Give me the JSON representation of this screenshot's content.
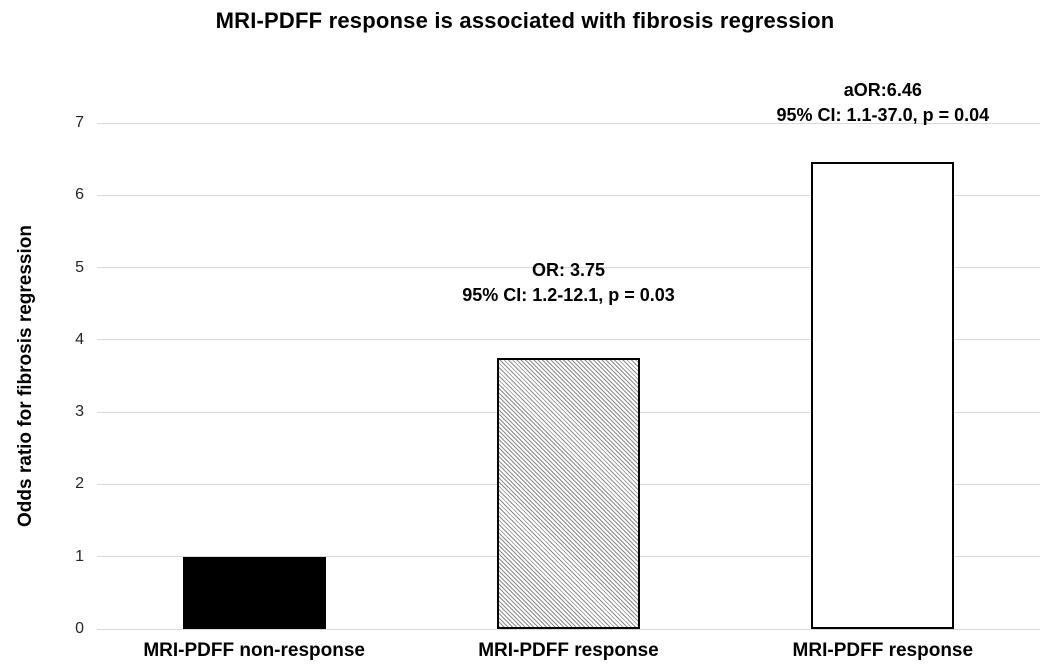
{
  "chart_data": {
    "type": "bar",
    "title": "MRI-PDFF response is associated with fibrosis regression",
    "xlabel": "",
    "ylabel": "Odds ratio for fibrosis regression",
    "ylim": [
      0,
      7
    ],
    "yticks": [
      0,
      1,
      2,
      3,
      4,
      5,
      6,
      7
    ],
    "grid": true,
    "legend_position": "none",
    "categories": [
      "MRI-PDFF non-response",
      "MRI-PDFF response",
      "MRI-PDFF response"
    ],
    "values": [
      1,
      3.75,
      6.46
    ],
    "bar_styles": [
      "solid-black",
      "diagonal-hatch",
      "white-outline"
    ],
    "annotations": [
      {
        "lines": []
      },
      {
        "lines": [
          "OR: 3.75",
          "95% CI: 1.2-12.1, p = 0.03"
        ]
      },
      {
        "lines": [
          "aOR:6.46",
          "95% CI: 1.1-37.0, p = 0.04"
        ]
      }
    ],
    "colors": {
      "bar_black": "#000000",
      "bar_border": "#000000",
      "bar_white": "#ffffff",
      "hatch_gray": "#8c8c8c",
      "gridline": "#d9d9d9",
      "text": "#000000",
      "background": "#ffffff"
    }
  }
}
